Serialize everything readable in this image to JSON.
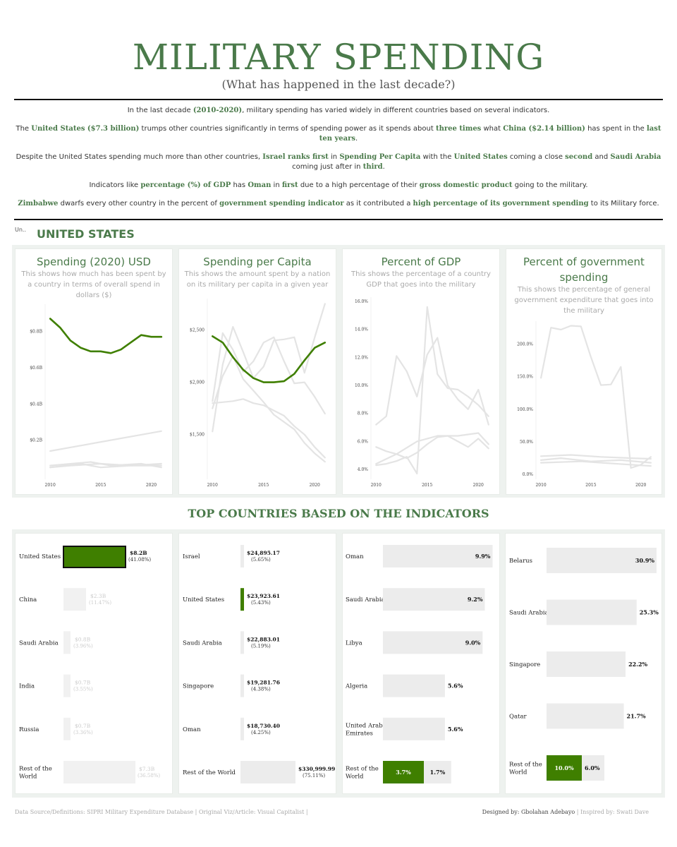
{
  "header": {
    "title": "MILITARY SPENDING",
    "subtitle": "(What has happened in the last decade?)"
  },
  "intro": {
    "p1": [
      "In the last decade ",
      "(2010-2020)",
      ", military spending has varied widely in different countries based on several indicators."
    ],
    "p2": [
      "The ",
      "United States ($7.3 billion)",
      " trumps other countries significantly in terms of spending power as it spends about ",
      "three times",
      " what ",
      "China ($2.14 billion)",
      " has spent in the ",
      "last ten years",
      "."
    ],
    "p3": [
      "Despite the United States spending much more than other countries, ",
      "Israel ranks first",
      " in ",
      "Spending Per Capita",
      " with the ",
      "United States",
      " coming a close ",
      "second",
      " and ",
      "Saudi Arabia",
      " coming just after in ",
      "third",
      "."
    ],
    "p4": [
      "Indicators like ",
      "percentage (%) of GDP",
      " has ",
      "Oman",
      " in ",
      "first",
      " due to a high percentage of their ",
      "gross domestic product",
      " going to the military."
    ],
    "p5": [
      "",
      "Zimbabwe",
      " dwarfs every other country in the percent of ",
      "government spending indicator",
      " as it contributed a ",
      "high percentage of its government spending",
      " to its Military force."
    ]
  },
  "filter": {
    "label": "Un..",
    "country": "UNITED STATES"
  },
  "colors": {
    "accent": "#4a7a4a",
    "highlight_bar": "#3f7f00",
    "gray_line": "#e5e5e5",
    "gray_bar": "#ececec"
  },
  "cards": [
    {
      "title": "Spending (2020) USD",
      "desc": "This shows how much has been spent by a country in terms of overall spend in dollars ($)"
    },
    {
      "title": "Spending per Capita",
      "desc": "This shows the amount spent by a nation on its military per capita in a given year"
    },
    {
      "title": "Percent of GDP",
      "desc": "This shows the percentage of a country GDP that goes into the military"
    },
    {
      "title": "Percent of government spending",
      "desc": "This shows the percentage of general government expenditure that goes into the military"
    }
  ],
  "chart_data": [
    {
      "type": "line",
      "title": "Spending (2020) USD",
      "x_ticks": [
        2010,
        2015,
        2020
      ],
      "y_ticks": [
        "$0.2B",
        "$0.4B",
        "$0.6B",
        "$0.8B"
      ],
      "ylim": [
        0,
        0.95
      ],
      "xlim": [
        2009.5,
        2021.5
      ],
      "series": [
        {
          "highlight": true,
          "x": [
            2010,
            2011,
            2012,
            2013,
            2014,
            2015,
            2016,
            2017,
            2018,
            2019,
            2020,
            2021
          ],
          "y": [
            0.87,
            0.82,
            0.75,
            0.71,
            0.69,
            0.69,
            0.68,
            0.7,
            0.74,
            0.78,
            0.77,
            0.77
          ]
        },
        {
          "x": [
            2010,
            2021
          ],
          "y": [
            0.14,
            0.25
          ]
        },
        {
          "x": [
            2010,
            2013,
            2015,
            2018,
            2021
          ],
          "y": [
            0.05,
            0.07,
            0.05,
            0.06,
            0.06
          ]
        },
        {
          "x": [
            2010,
            2014,
            2016,
            2019,
            2021
          ],
          "y": [
            0.06,
            0.08,
            0.06,
            0.07,
            0.05
          ]
        },
        {
          "x": [
            2010,
            2012,
            2015,
            2018,
            2021
          ],
          "y": [
            0.05,
            0.06,
            0.07,
            0.06,
            0.07
          ]
        }
      ]
    },
    {
      "type": "line",
      "title": "Spending per Capita",
      "x_ticks": [
        2010,
        2015,
        2020
      ],
      "y_ticks": [
        "$1,500",
        "$2,000",
        "$2,500"
      ],
      "y_tick_values": [
        1500,
        2000,
        2500
      ],
      "ylim": [
        1100,
        2800
      ],
      "xlim": [
        2009.5,
        2021.5
      ],
      "series": [
        {
          "highlight": true,
          "x": [
            2010,
            2011,
            2012,
            2013,
            2014,
            2015,
            2016,
            2017,
            2018,
            2019,
            2020,
            2021
          ],
          "y": [
            2440,
            2380,
            2240,
            2120,
            2040,
            2000,
            2000,
            2010,
            2080,
            2210,
            2330,
            2380
          ]
        },
        {
          "x": [
            2010,
            2011,
            2012,
            2013,
            2014,
            2015,
            2016,
            2017,
            2018,
            2019,
            2020,
            2021
          ],
          "y": [
            1530,
            2170,
            2530,
            2290,
            2040,
            2150,
            2400,
            2410,
            2430,
            2090,
            2430,
            2750
          ]
        },
        {
          "x": [
            2010,
            2011,
            2012,
            2013,
            2014,
            2015,
            2016,
            2017,
            2018,
            2019,
            2020,
            2021
          ],
          "y": [
            1820,
            2470,
            2310,
            2100,
            2200,
            2380,
            2430,
            2200,
            1990,
            2000,
            1860,
            1700
          ]
        },
        {
          "x": [
            2010,
            2011,
            2012,
            2013,
            2014,
            2015,
            2016,
            2017,
            2018,
            2019,
            2020,
            2021
          ],
          "y": [
            1750,
            2060,
            2250,
            2030,
            1920,
            1810,
            1690,
            1620,
            1550,
            1420,
            1320,
            1240
          ]
        },
        {
          "x": [
            2010,
            2011,
            2012,
            2013,
            2014,
            2015,
            2016,
            2017,
            2018,
            2019,
            2020,
            2021
          ],
          "y": [
            1800,
            1810,
            1820,
            1840,
            1800,
            1780,
            1730,
            1680,
            1580,
            1500,
            1380,
            1280
          ]
        }
      ]
    },
    {
      "type": "line",
      "title": "Percent of GDP",
      "x_ticks": [
        2010,
        2015,
        2020
      ],
      "y_ticks": [
        "4.0%",
        "6.0%",
        "8.0%",
        "10.0%",
        "12.0%",
        "14.0%",
        "16.0%"
      ],
      "y_tick_values": [
        4,
        6,
        8,
        10,
        12,
        14,
        16
      ],
      "ylim": [
        3.5,
        16.3
      ],
      "xlim": [
        2009.5,
        2021.5
      ],
      "series": [
        {
          "x": [
            2010,
            2011,
            2012,
            2013,
            2014,
            2015,
            2016,
            2017,
            2018,
            2019,
            2020,
            2021
          ],
          "y": [
            7.2,
            7.8,
            12.1,
            11.0,
            9.2,
            12.2,
            13.4,
            10.0,
            9.0,
            8.3,
            9.7,
            7.2
          ]
        },
        {
          "x": [
            2010,
            2011,
            2012,
            2013,
            2014,
            2015,
            2016,
            2017,
            2018,
            2019,
            2020,
            2021
          ],
          "y": [
            4.3,
            4.4,
            4.6,
            4.9,
            3.7,
            15.6,
            10.8,
            9.8,
            9.7,
            9.2,
            8.6,
            7.8
          ]
        },
        {
          "x": [
            2010,
            2011,
            2012,
            2013,
            2014,
            2015,
            2016,
            2017,
            2018,
            2019,
            2020,
            2021
          ],
          "y": [
            5.6,
            5.3,
            5.1,
            4.8,
            5.2,
            5.8,
            6.3,
            6.4,
            6.0,
            5.6,
            6.2,
            5.5
          ]
        },
        {
          "x": [
            2010,
            2012,
            2014,
            2016,
            2018,
            2020,
            2021
          ],
          "y": [
            4.4,
            5.1,
            6.0,
            6.4,
            6.4,
            6.6,
            5.8
          ]
        }
      ]
    },
    {
      "type": "line",
      "title": "Percent of government spending",
      "x_ticks": [
        2010,
        2015,
        2020
      ],
      "y_ticks": [
        "0.0%",
        "50.0%",
        "100.0%",
        "150.0%",
        "200.0%"
      ],
      "y_tick_values": [
        0,
        50,
        100,
        150,
        200
      ],
      "ylim": [
        -3,
        235
      ],
      "xlim": [
        2009.5,
        2021.5
      ],
      "series": [
        {
          "x": [
            2010,
            2011,
            2012,
            2013,
            2014,
            2015,
            2016,
            2017,
            2018,
            2019,
            2020,
            2021
          ],
          "y": [
            148,
            225,
            222,
            228,
            227,
            180,
            137,
            138,
            165,
            10,
            15,
            27
          ]
        },
        {
          "x": [
            2010,
            2013,
            2016,
            2019,
            2021
          ],
          "y": [
            28,
            30,
            27,
            25,
            24
          ]
        },
        {
          "x": [
            2010,
            2012,
            2015,
            2018,
            2021
          ],
          "y": [
            22,
            25,
            20,
            22,
            18
          ]
        },
        {
          "x": [
            2010,
            2014,
            2017,
            2020,
            2021
          ],
          "y": [
            18,
            20,
            17,
            14,
            13
          ]
        }
      ]
    },
    {
      "type": "bar",
      "title": "Spending (2020) USD",
      "categories": [
        "United States",
        "China",
        "Saudi Arabia",
        "India",
        "Russia",
        "Rest of the World"
      ],
      "values": [
        8.2,
        2.3,
        0.8,
        0.7,
        0.7,
        7.3
      ],
      "labels": [
        "$8.2B",
        "$2.3B",
        "$0.8B",
        "$0.7B",
        "$0.7B",
        "$7.3B"
      ],
      "sublabels": [
        "(41.08%)",
        "(11.47%)",
        "(3.96%)",
        "(3.55%)",
        "(3.36%)",
        "(36.58%)"
      ],
      "highlight_index": 0
    },
    {
      "type": "bar",
      "title": "Spending per Capita",
      "categories": [
        "Israel",
        "United States",
        "Saudi Arabia",
        "Singapore",
        "Oman",
        "Rest of the World"
      ],
      "values": [
        24895.17,
        23923.61,
        22883.01,
        19281.76,
        18730.4,
        330999.99
      ],
      "labels": [
        "$24,895.17",
        "$23,923.61",
        "$22,883.01",
        "$19,281.76",
        "$18,730.40",
        "$330,999.99"
      ],
      "sublabels": [
        "(5.65%)",
        "(5.43%)",
        "(5.19%)",
        "(4.38%)",
        "(4.25%)",
        "(75.11%)"
      ],
      "highlight_index": 1
    },
    {
      "type": "bar",
      "title": "Percent of GDP",
      "categories": [
        "Oman",
        "Saudi Arabia",
        "Libya",
        "Algeria",
        "United Arab Emirates",
        "Rest of the World"
      ],
      "values": [
        9.9,
        9.2,
        9.0,
        5.6,
        5.6,
        1.7
      ],
      "labels": [
        "9.9%",
        "9.2%",
        "9.0%",
        "5.6%",
        "5.6%",
        "1.7%"
      ],
      "highlight_value": 3.7,
      "highlight_label": "3.7%"
    },
    {
      "type": "bar",
      "title": "Percent of government spending",
      "categories": [
        "Belarus",
        "Saudi Arabia",
        "Singapore",
        "Qatar",
        "Rest of the World"
      ],
      "values": [
        30.9,
        25.3,
        22.2,
        21.7,
        6.0
      ],
      "labels": [
        "30.9%",
        "25.3%",
        "22.2%",
        "21.7%",
        "6.0%"
      ],
      "highlight_value": 10.0,
      "highlight_label": "10.0%"
    }
  ],
  "top_section_title": "TOP COUNTRIES BASED ON THE INDICATORS",
  "footer": {
    "left": "Data Source/Definitions: SIPRI Military Expenditure Database | Original Viz/Article: Visual Capitalist |",
    "right_strong": "Designed by: Gbolahan Adebayo",
    "right_muted": "| Inspired by: Swati Dave"
  }
}
